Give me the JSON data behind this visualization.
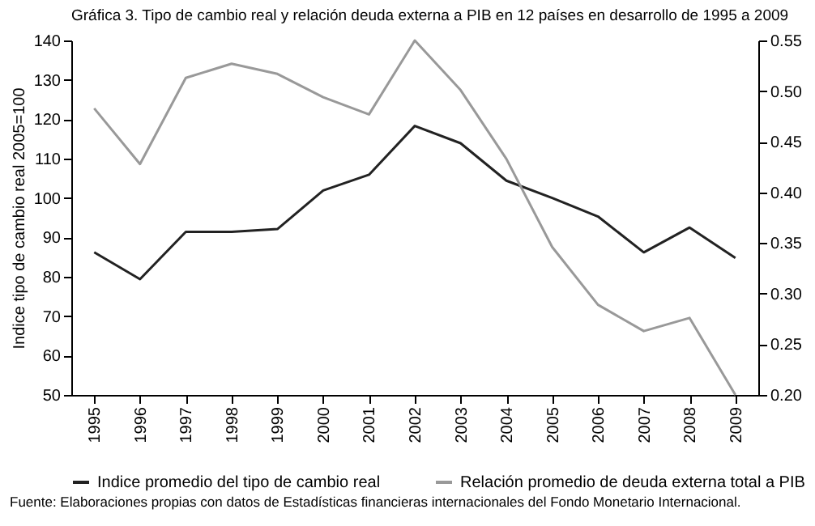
{
  "chart_data": {
    "type": "line",
    "title": "Gráfica 3. Tipo de cambio real y relación deuda externa a PIB en 12 países en desarrollo de 1995 a 2009",
    "ylabel": "Indice tipo de cambio real 2005=100",
    "categories": [
      "1995",
      "1996",
      "1997",
      "1998",
      "1999",
      "2000",
      "2001",
      "2002",
      "2003",
      "2004",
      "2005",
      "2006",
      "2007",
      "2008",
      "2009"
    ],
    "series": [
      {
        "name": "Indice promedio del tipo de cambio real",
        "color": "#222222",
        "values": [
          86.2,
          79.4,
          91.4,
          91.4,
          92.1,
          101.9,
          105.9,
          118.3,
          113.9,
          104.4,
          100,
          95.3,
          86.2,
          92.5,
          84.8
        ]
      },
      {
        "name": "Relación promedio de deuda externa total a PIB",
        "color": "#999999",
        "axis": "y2",
        "values": [
          0.483,
          0.428,
          0.513,
          0.527,
          0.517,
          0.494,
          0.477,
          0.55,
          0.501,
          0.433,
          0.346,
          0.289,
          0.263,
          0.276,
          0.2
        ]
      }
    ],
    "ylim": [
      50,
      140
    ],
    "yticks": [
      50,
      60,
      70,
      80,
      90,
      100,
      110,
      120,
      130,
      140
    ],
    "y2lim": [
      0.2,
      0.55
    ],
    "y2ticks": [
      {
        "value": 0.2,
        "label": "0.20"
      },
      {
        "value": 0.25,
        "label": "0.25"
      },
      {
        "value": 0.3,
        "label": "0.30"
      },
      {
        "value": 0.35,
        "label": "0.35"
      },
      {
        "value": 0.4,
        "label": "0.40"
      },
      {
        "value": 0.45,
        "label": "0.45"
      },
      {
        "value": 0.5,
        "label": "0.50"
      },
      {
        "value": 0.55,
        "label": "0.55"
      }
    ],
    "legend": "bottom",
    "annotations": [
      "Fuente: Elaboraciones propias con datos de Estadísticas financieras internacionales del Fondo Monetario Internacional."
    ]
  }
}
